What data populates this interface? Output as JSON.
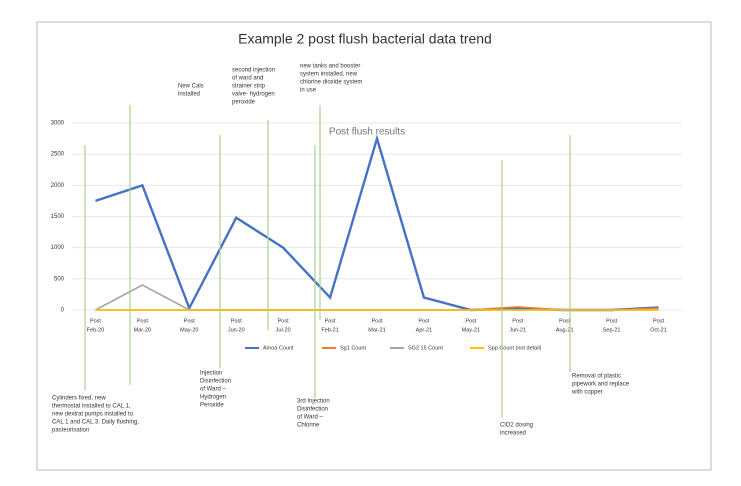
{
  "chart_data": {
    "type": "line",
    "title": "Example 2 post flush bacterial data trend",
    "subtitle": "Post flush results",
    "categories": [
      [
        "Post",
        "Feb-20"
      ],
      [
        "Post",
        "Mar-20"
      ],
      [
        "Post",
        "May-20"
      ],
      [
        "Post",
        "Jun-20"
      ],
      [
        "Post",
        "Jul-20"
      ],
      [
        "Post",
        "Feb-21"
      ],
      [
        "Post",
        "Mar-21"
      ],
      [
        "Post",
        "Apr-21"
      ],
      [
        "Post",
        "May-21"
      ],
      [
        "Post",
        "Jun-21"
      ],
      [
        "Post",
        "Aug-21"
      ],
      [
        "Post",
        "Sep-21"
      ],
      [
        "Post",
        "Oct-21"
      ]
    ],
    "series": [
      {
        "name": "Amoa Count",
        "color": "#4472c4",
        "values": [
          1750,
          2000,
          30,
          1480,
          1000,
          200,
          2750,
          200,
          0,
          20,
          0,
          0,
          40
        ]
      },
      {
        "name": "Sg1 Count",
        "color": "#ed7d31",
        "values": [
          0,
          0,
          0,
          0,
          0,
          0,
          0,
          0,
          0,
          50,
          0,
          0,
          30
        ]
      },
      {
        "name": "SG2 15 Count",
        "color": "#a5a5a5",
        "values": [
          0,
          400,
          0,
          0,
          0,
          0,
          0,
          0,
          0,
          0,
          0,
          0,
          0
        ]
      },
      {
        "name": "Spp Count (not detail)",
        "color": "#ffc000",
        "values": [
          0,
          0,
          0,
          0,
          0,
          0,
          0,
          0,
          0,
          0,
          0,
          0,
          0
        ]
      }
    ],
    "ylim": [
      0,
      3000
    ],
    "yticks": [
      0,
      500,
      1000,
      1500,
      2000,
      2500,
      3000
    ],
    "grid": true,
    "legend": "bottom",
    "annotations": [
      [
        "Cylinders fixed, new",
        "thermostat installed to CAL 1,",
        "new dextrat pumps installed to",
        "CAL 1 and CAL 3. Daily flushing,",
        "pasteurisation"
      ],
      [
        "New Cals",
        "installed"
      ],
      [
        "Injection",
        "Disinfection",
        "of Ward –",
        "Hydrogen",
        "Peroxide"
      ],
      [
        "second injection",
        "of ward and",
        "strainer strip",
        "valve- hydrogen",
        "peroxide"
      ],
      [
        "3rd Injection",
        "Disinfection",
        "of Ward –",
        "Chlorine"
      ],
      [
        "new tanks and booster",
        "system installed, new",
        "chlorine dioxide system",
        "in use"
      ],
      [
        "ClO2 dosing",
        "increased"
      ],
      [
        "Removal of plastic",
        "pipework and replace",
        "with copper"
      ]
    ]
  }
}
